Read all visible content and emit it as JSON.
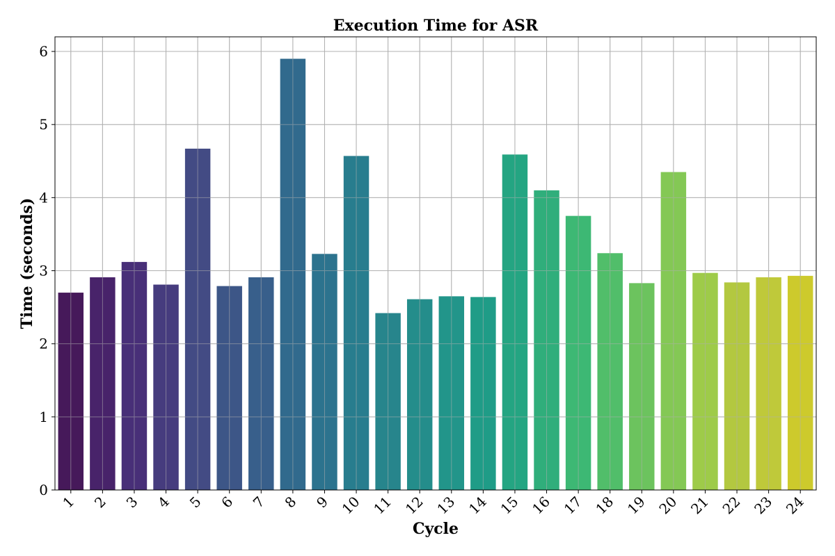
{
  "chart_data": {
    "type": "bar",
    "title": "Execution Time for ASR",
    "xlabel": "Cycle",
    "ylabel": "Time (seconds)",
    "categories": [
      "1",
      "2",
      "3",
      "4",
      "5",
      "6",
      "7",
      "8",
      "9",
      "10",
      "11",
      "12",
      "13",
      "14",
      "15",
      "16",
      "17",
      "18",
      "19",
      "20",
      "21",
      "22",
      "23",
      "24"
    ],
    "values": [
      2.7,
      2.91,
      3.12,
      2.81,
      4.67,
      2.79,
      2.91,
      5.9,
      3.23,
      4.57,
      2.42,
      2.61,
      2.65,
      2.64,
      4.59,
      4.1,
      3.75,
      3.24,
      2.83,
      4.35,
      2.97,
      2.84,
      2.91,
      2.93
    ],
    "yticks": [
      0,
      1,
      2,
      3,
      4,
      5,
      6
    ],
    "ylim": [
      0,
      6.2
    ],
    "grid": true,
    "colors": [
      "#46195a",
      "#48236a",
      "#482f78",
      "#463c7e",
      "#434b84",
      "#3d5687",
      "#385f8b",
      "#316a8d",
      "#2c738e",
      "#287d8e",
      "#27858c",
      "#248d8b",
      "#22958a",
      "#1f9c87",
      "#24a582",
      "#30ae7b",
      "#3db874",
      "#51be6a",
      "#6cc35e",
      "#84c855",
      "#9ecb49",
      "#b3c840",
      "#bfc93a",
      "#cdca2c"
    ]
  }
}
